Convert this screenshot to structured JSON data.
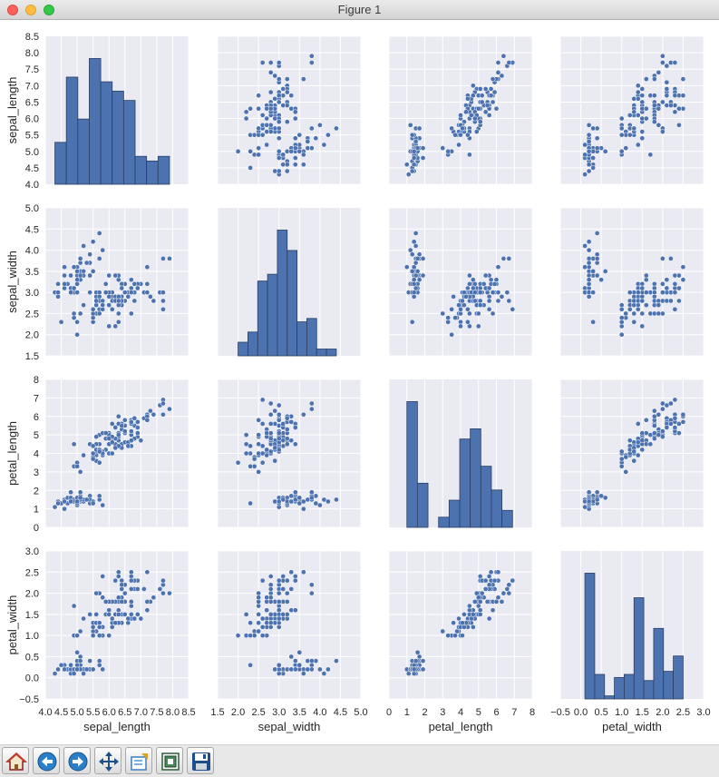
{
  "window": {
    "title": "Figure 1"
  },
  "toolbar": {
    "buttons": [
      {
        "name": "home-button",
        "icon": "home-icon"
      },
      {
        "name": "back-button",
        "icon": "arrow-left-icon"
      },
      {
        "name": "forward-button",
        "icon": "arrow-right-icon"
      },
      {
        "name": "pan-button",
        "icon": "move-arrows-icon"
      },
      {
        "name": "zoom-button",
        "icon": "zoom-rect-icon"
      },
      {
        "name": "subplots-button",
        "icon": "subplots-icon"
      },
      {
        "name": "save-button",
        "icon": "floppy-disk-icon"
      }
    ]
  },
  "colors": {
    "background": "#eaeaf2",
    "grid": "#ffffff",
    "marker": "#4c72b0",
    "bar_edge": "#2b3f63"
  },
  "chart_data": {
    "type": "pairplot",
    "variables": [
      "sepal_length",
      "sepal_width",
      "petal_length",
      "petal_width"
    ],
    "axes": [
      {
        "label": "sepal_length",
        "lim": [
          4.0,
          8.5
        ],
        "ticks": [
          4.0,
          4.5,
          5.0,
          5.5,
          6.0,
          6.5,
          7.0,
          7.5,
          8.0,
          8.5
        ],
        "tick_labels": [
          "4.0",
          "4.5",
          "5.0",
          "5.5",
          "6.0",
          "6.5",
          "7.0",
          "7.5",
          "8.0",
          "8.5"
        ]
      },
      {
        "label": "sepal_width",
        "lim": [
          1.5,
          5.0
        ],
        "ticks": [
          1.5,
          2.0,
          2.5,
          3.0,
          3.5,
          4.0,
          4.5,
          5.0
        ],
        "tick_labels": [
          "1.5",
          "2.0",
          "2.5",
          "3.0",
          "3.5",
          "4.0",
          "4.5",
          "5.0"
        ]
      },
      {
        "label": "petal_length",
        "lim": [
          0,
          8
        ],
        "ticks": [
          0,
          1,
          2,
          3,
          4,
          5,
          6,
          7,
          8
        ],
        "tick_labels": [
          "0",
          "1",
          "2",
          "3",
          "4",
          "5",
          "6",
          "7",
          "8"
        ]
      },
      {
        "label": "petal_width",
        "lim": [
          -0.5,
          3.0
        ],
        "ticks": [
          -0.5,
          0.0,
          0.5,
          1.0,
          1.5,
          2.0,
          2.5,
          3.0
        ],
        "tick_labels": [
          "−0.5",
          "0.0",
          "0.5",
          "1.0",
          "1.5",
          "2.0",
          "2.5",
          "3.0"
        ]
      }
    ],
    "histograms": [
      {
        "variable": "sepal_length",
        "bin_edges": [
          4.3,
          4.66,
          5.02,
          5.38,
          5.74,
          6.1,
          6.46,
          6.82,
          7.18,
          7.54,
          7.9
        ],
        "counts": [
          9,
          23,
          14,
          27,
          22,
          20,
          18,
          6,
          5,
          6
        ]
      },
      {
        "variable": "sepal_width",
        "bin_edges": [
          2.0,
          2.24,
          2.48,
          2.72,
          2.96,
          3.2,
          3.44,
          3.68,
          3.92,
          4.16,
          4.4
        ],
        "counts": [
          4,
          7,
          22,
          24,
          37,
          31,
          10,
          11,
          2,
          2
        ]
      },
      {
        "variable": "petal_length",
        "bin_edges": [
          1.0,
          1.59,
          2.18,
          2.77,
          3.36,
          3.95,
          4.54,
          5.13,
          5.72,
          6.31,
          6.9
        ],
        "counts": [
          37,
          13,
          0,
          3,
          8,
          26,
          29,
          18,
          11,
          5
        ]
      },
      {
        "variable": "petal_width",
        "bin_edges": [
          0.1,
          0.34,
          0.58,
          0.82,
          1.06,
          1.3,
          1.54,
          1.78,
          2.02,
          2.26,
          2.5
        ],
        "counts": [
          41,
          8,
          1,
          7,
          8,
          33,
          6,
          23,
          9,
          14
        ]
      }
    ],
    "points": [
      [
        5.1,
        3.5,
        1.4,
        0.2
      ],
      [
        4.9,
        3.0,
        1.4,
        0.2
      ],
      [
        4.7,
        3.2,
        1.3,
        0.2
      ],
      [
        4.6,
        3.1,
        1.5,
        0.2
      ],
      [
        5.0,
        3.6,
        1.4,
        0.2
      ],
      [
        5.4,
        3.9,
        1.7,
        0.4
      ],
      [
        4.6,
        3.4,
        1.4,
        0.3
      ],
      [
        5.0,
        3.4,
        1.5,
        0.2
      ],
      [
        4.4,
        2.9,
        1.4,
        0.2
      ],
      [
        4.9,
        3.1,
        1.5,
        0.1
      ],
      [
        5.4,
        3.7,
        1.5,
        0.2
      ],
      [
        4.8,
        3.4,
        1.6,
        0.2
      ],
      [
        4.8,
        3.0,
        1.4,
        0.1
      ],
      [
        4.3,
        3.0,
        1.1,
        0.1
      ],
      [
        5.8,
        4.0,
        1.2,
        0.2
      ],
      [
        5.7,
        4.4,
        1.5,
        0.4
      ],
      [
        5.4,
        3.9,
        1.3,
        0.4
      ],
      [
        5.1,
        3.5,
        1.4,
        0.3
      ],
      [
        5.7,
        3.8,
        1.7,
        0.3
      ],
      [
        5.1,
        3.8,
        1.5,
        0.3
      ],
      [
        5.4,
        3.4,
        1.7,
        0.2
      ],
      [
        5.1,
        3.7,
        1.5,
        0.4
      ],
      [
        4.6,
        3.6,
        1.0,
        0.2
      ],
      [
        5.1,
        3.3,
        1.7,
        0.5
      ],
      [
        4.8,
        3.4,
        1.9,
        0.2
      ],
      [
        5.0,
        3.0,
        1.6,
        0.2
      ],
      [
        5.0,
        3.4,
        1.6,
        0.4
      ],
      [
        5.2,
        3.5,
        1.5,
        0.2
      ],
      [
        5.2,
        3.4,
        1.4,
        0.2
      ],
      [
        4.7,
        3.2,
        1.6,
        0.2
      ],
      [
        4.8,
        3.1,
        1.6,
        0.2
      ],
      [
        5.4,
        3.4,
        1.5,
        0.4
      ],
      [
        5.2,
        4.1,
        1.5,
        0.1
      ],
      [
        5.5,
        4.2,
        1.4,
        0.2
      ],
      [
        4.9,
        3.1,
        1.5,
        0.2
      ],
      [
        5.0,
        3.2,
        1.2,
        0.2
      ],
      [
        5.5,
        3.5,
        1.3,
        0.2
      ],
      [
        4.9,
        3.6,
        1.4,
        0.1
      ],
      [
        4.4,
        3.0,
        1.3,
        0.2
      ],
      [
        5.1,
        3.4,
        1.5,
        0.2
      ],
      [
        5.0,
        3.5,
        1.3,
        0.3
      ],
      [
        4.5,
        2.3,
        1.3,
        0.3
      ],
      [
        4.4,
        3.2,
        1.3,
        0.2
      ],
      [
        5.0,
        3.5,
        1.6,
        0.6
      ],
      [
        5.1,
        3.8,
        1.9,
        0.4
      ],
      [
        4.8,
        3.0,
        1.4,
        0.3
      ],
      [
        5.1,
        3.8,
        1.6,
        0.2
      ],
      [
        4.6,
        3.2,
        1.4,
        0.2
      ],
      [
        5.3,
        3.7,
        1.5,
        0.2
      ],
      [
        5.0,
        3.3,
        1.4,
        0.2
      ],
      [
        7.0,
        3.2,
        4.7,
        1.4
      ],
      [
        6.4,
        3.2,
        4.5,
        1.5
      ],
      [
        6.9,
        3.1,
        4.9,
        1.5
      ],
      [
        5.5,
        2.3,
        4.0,
        1.3
      ],
      [
        6.5,
        2.8,
        4.6,
        1.5
      ],
      [
        5.7,
        2.8,
        4.5,
        1.3
      ],
      [
        6.3,
        3.3,
        4.7,
        1.6
      ],
      [
        4.9,
        2.4,
        3.3,
        1.0
      ],
      [
        6.6,
        2.9,
        4.6,
        1.3
      ],
      [
        5.2,
        2.7,
        3.9,
        1.4
      ],
      [
        5.0,
        2.0,
        3.5,
        1.0
      ],
      [
        5.9,
        3.0,
        4.2,
        1.5
      ],
      [
        6.0,
        2.2,
        4.0,
        1.0
      ],
      [
        6.1,
        2.9,
        4.7,
        1.4
      ],
      [
        5.6,
        2.9,
        3.6,
        1.3
      ],
      [
        6.7,
        3.1,
        4.4,
        1.4
      ],
      [
        5.6,
        3.0,
        4.5,
        1.5
      ],
      [
        5.8,
        2.7,
        4.1,
        1.0
      ],
      [
        6.2,
        2.2,
        4.5,
        1.5
      ],
      [
        5.6,
        2.5,
        3.9,
        1.1
      ],
      [
        5.9,
        3.2,
        4.8,
        1.8
      ],
      [
        6.1,
        2.8,
        4.0,
        1.3
      ],
      [
        6.3,
        2.5,
        4.9,
        1.5
      ],
      [
        6.1,
        2.8,
        4.7,
        1.2
      ],
      [
        6.4,
        2.9,
        4.3,
        1.3
      ],
      [
        6.6,
        3.0,
        4.4,
        1.4
      ],
      [
        6.8,
        2.8,
        4.8,
        1.4
      ],
      [
        6.7,
        3.0,
        5.0,
        1.7
      ],
      [
        6.0,
        2.9,
        4.5,
        1.5
      ],
      [
        5.7,
        2.6,
        3.5,
        1.0
      ],
      [
        5.5,
        2.4,
        3.8,
        1.1
      ],
      [
        5.5,
        2.4,
        3.7,
        1.0
      ],
      [
        5.8,
        2.7,
        3.9,
        1.2
      ],
      [
        6.0,
        2.7,
        5.1,
        1.6
      ],
      [
        5.4,
        3.0,
        4.5,
        1.5
      ],
      [
        6.0,
        3.4,
        4.5,
        1.6
      ],
      [
        6.7,
        3.1,
        4.7,
        1.5
      ],
      [
        6.3,
        2.3,
        4.4,
        1.3
      ],
      [
        5.6,
        3.0,
        4.1,
        1.3
      ],
      [
        5.5,
        2.5,
        4.0,
        1.3
      ],
      [
        5.5,
        2.6,
        4.4,
        1.2
      ],
      [
        6.1,
        3.0,
        4.6,
        1.4
      ],
      [
        5.8,
        2.6,
        4.0,
        1.2
      ],
      [
        5.0,
        2.3,
        3.3,
        1.0
      ],
      [
        5.6,
        2.7,
        4.2,
        1.3
      ],
      [
        5.7,
        3.0,
        4.2,
        1.2
      ],
      [
        5.7,
        2.9,
        4.2,
        1.3
      ],
      [
        6.2,
        2.9,
        4.3,
        1.3
      ],
      [
        5.1,
        2.5,
        3.0,
        1.1
      ],
      [
        5.7,
        2.8,
        4.1,
        1.3
      ],
      [
        6.3,
        3.3,
        6.0,
        2.5
      ],
      [
        5.8,
        2.7,
        5.1,
        1.9
      ],
      [
        7.1,
        3.0,
        5.9,
        2.1
      ],
      [
        6.3,
        2.9,
        5.6,
        1.8
      ],
      [
        6.5,
        3.0,
        5.8,
        2.2
      ],
      [
        7.6,
        3.0,
        6.6,
        2.1
      ],
      [
        4.9,
        2.5,
        4.5,
        1.7
      ],
      [
        7.3,
        2.9,
        6.3,
        1.8
      ],
      [
        6.7,
        2.5,
        5.8,
        1.8
      ],
      [
        7.2,
        3.6,
        6.1,
        2.5
      ],
      [
        6.5,
        3.2,
        5.1,
        2.0
      ],
      [
        6.4,
        2.7,
        5.3,
        1.9
      ],
      [
        6.8,
        3.0,
        5.5,
        2.1
      ],
      [
        5.7,
        2.5,
        5.0,
        2.0
      ],
      [
        5.8,
        2.8,
        5.1,
        2.4
      ],
      [
        6.4,
        3.2,
        5.3,
        2.3
      ],
      [
        6.5,
        3.0,
        5.5,
        1.8
      ],
      [
        7.7,
        3.8,
        6.7,
        2.2
      ],
      [
        7.7,
        2.6,
        6.9,
        2.3
      ],
      [
        6.0,
        2.2,
        5.0,
        1.5
      ],
      [
        6.9,
        3.2,
        5.7,
        2.3
      ],
      [
        5.6,
        2.8,
        4.9,
        2.0
      ],
      [
        7.7,
        2.8,
        6.7,
        2.0
      ],
      [
        6.3,
        2.7,
        4.9,
        1.8
      ],
      [
        6.7,
        3.3,
        5.7,
        2.1
      ],
      [
        7.2,
        3.2,
        6.0,
        1.8
      ],
      [
        6.2,
        2.8,
        4.8,
        1.8
      ],
      [
        6.1,
        3.0,
        4.9,
        1.8
      ],
      [
        6.4,
        2.8,
        5.6,
        2.1
      ],
      [
        7.2,
        3.0,
        5.8,
        1.6
      ],
      [
        7.4,
        2.8,
        6.1,
        1.9
      ],
      [
        7.9,
        3.8,
        6.4,
        2.0
      ],
      [
        6.4,
        2.8,
        5.6,
        2.2
      ],
      [
        6.3,
        2.8,
        5.1,
        1.5
      ],
      [
        6.1,
        2.6,
        5.6,
        1.4
      ],
      [
        7.7,
        3.0,
        6.1,
        2.3
      ],
      [
        6.3,
        3.4,
        5.6,
        2.4
      ],
      [
        6.4,
        3.1,
        5.5,
        1.8
      ],
      [
        6.0,
        3.0,
        4.8,
        1.8
      ],
      [
        6.9,
        3.1,
        5.4,
        2.1
      ],
      [
        6.7,
        3.1,
        5.6,
        2.4
      ],
      [
        6.9,
        3.1,
        5.1,
        2.3
      ],
      [
        5.8,
        2.7,
        5.1,
        1.9
      ],
      [
        6.8,
        3.2,
        5.9,
        2.3
      ],
      [
        6.7,
        3.3,
        5.7,
        2.5
      ],
      [
        6.7,
        3.0,
        5.2,
        2.3
      ],
      [
        6.3,
        2.5,
        5.0,
        1.9
      ],
      [
        6.5,
        3.0,
        5.2,
        2.0
      ],
      [
        6.2,
        3.4,
        5.4,
        2.3
      ],
      [
        5.9,
        3.0,
        5.1,
        1.8
      ]
    ]
  }
}
